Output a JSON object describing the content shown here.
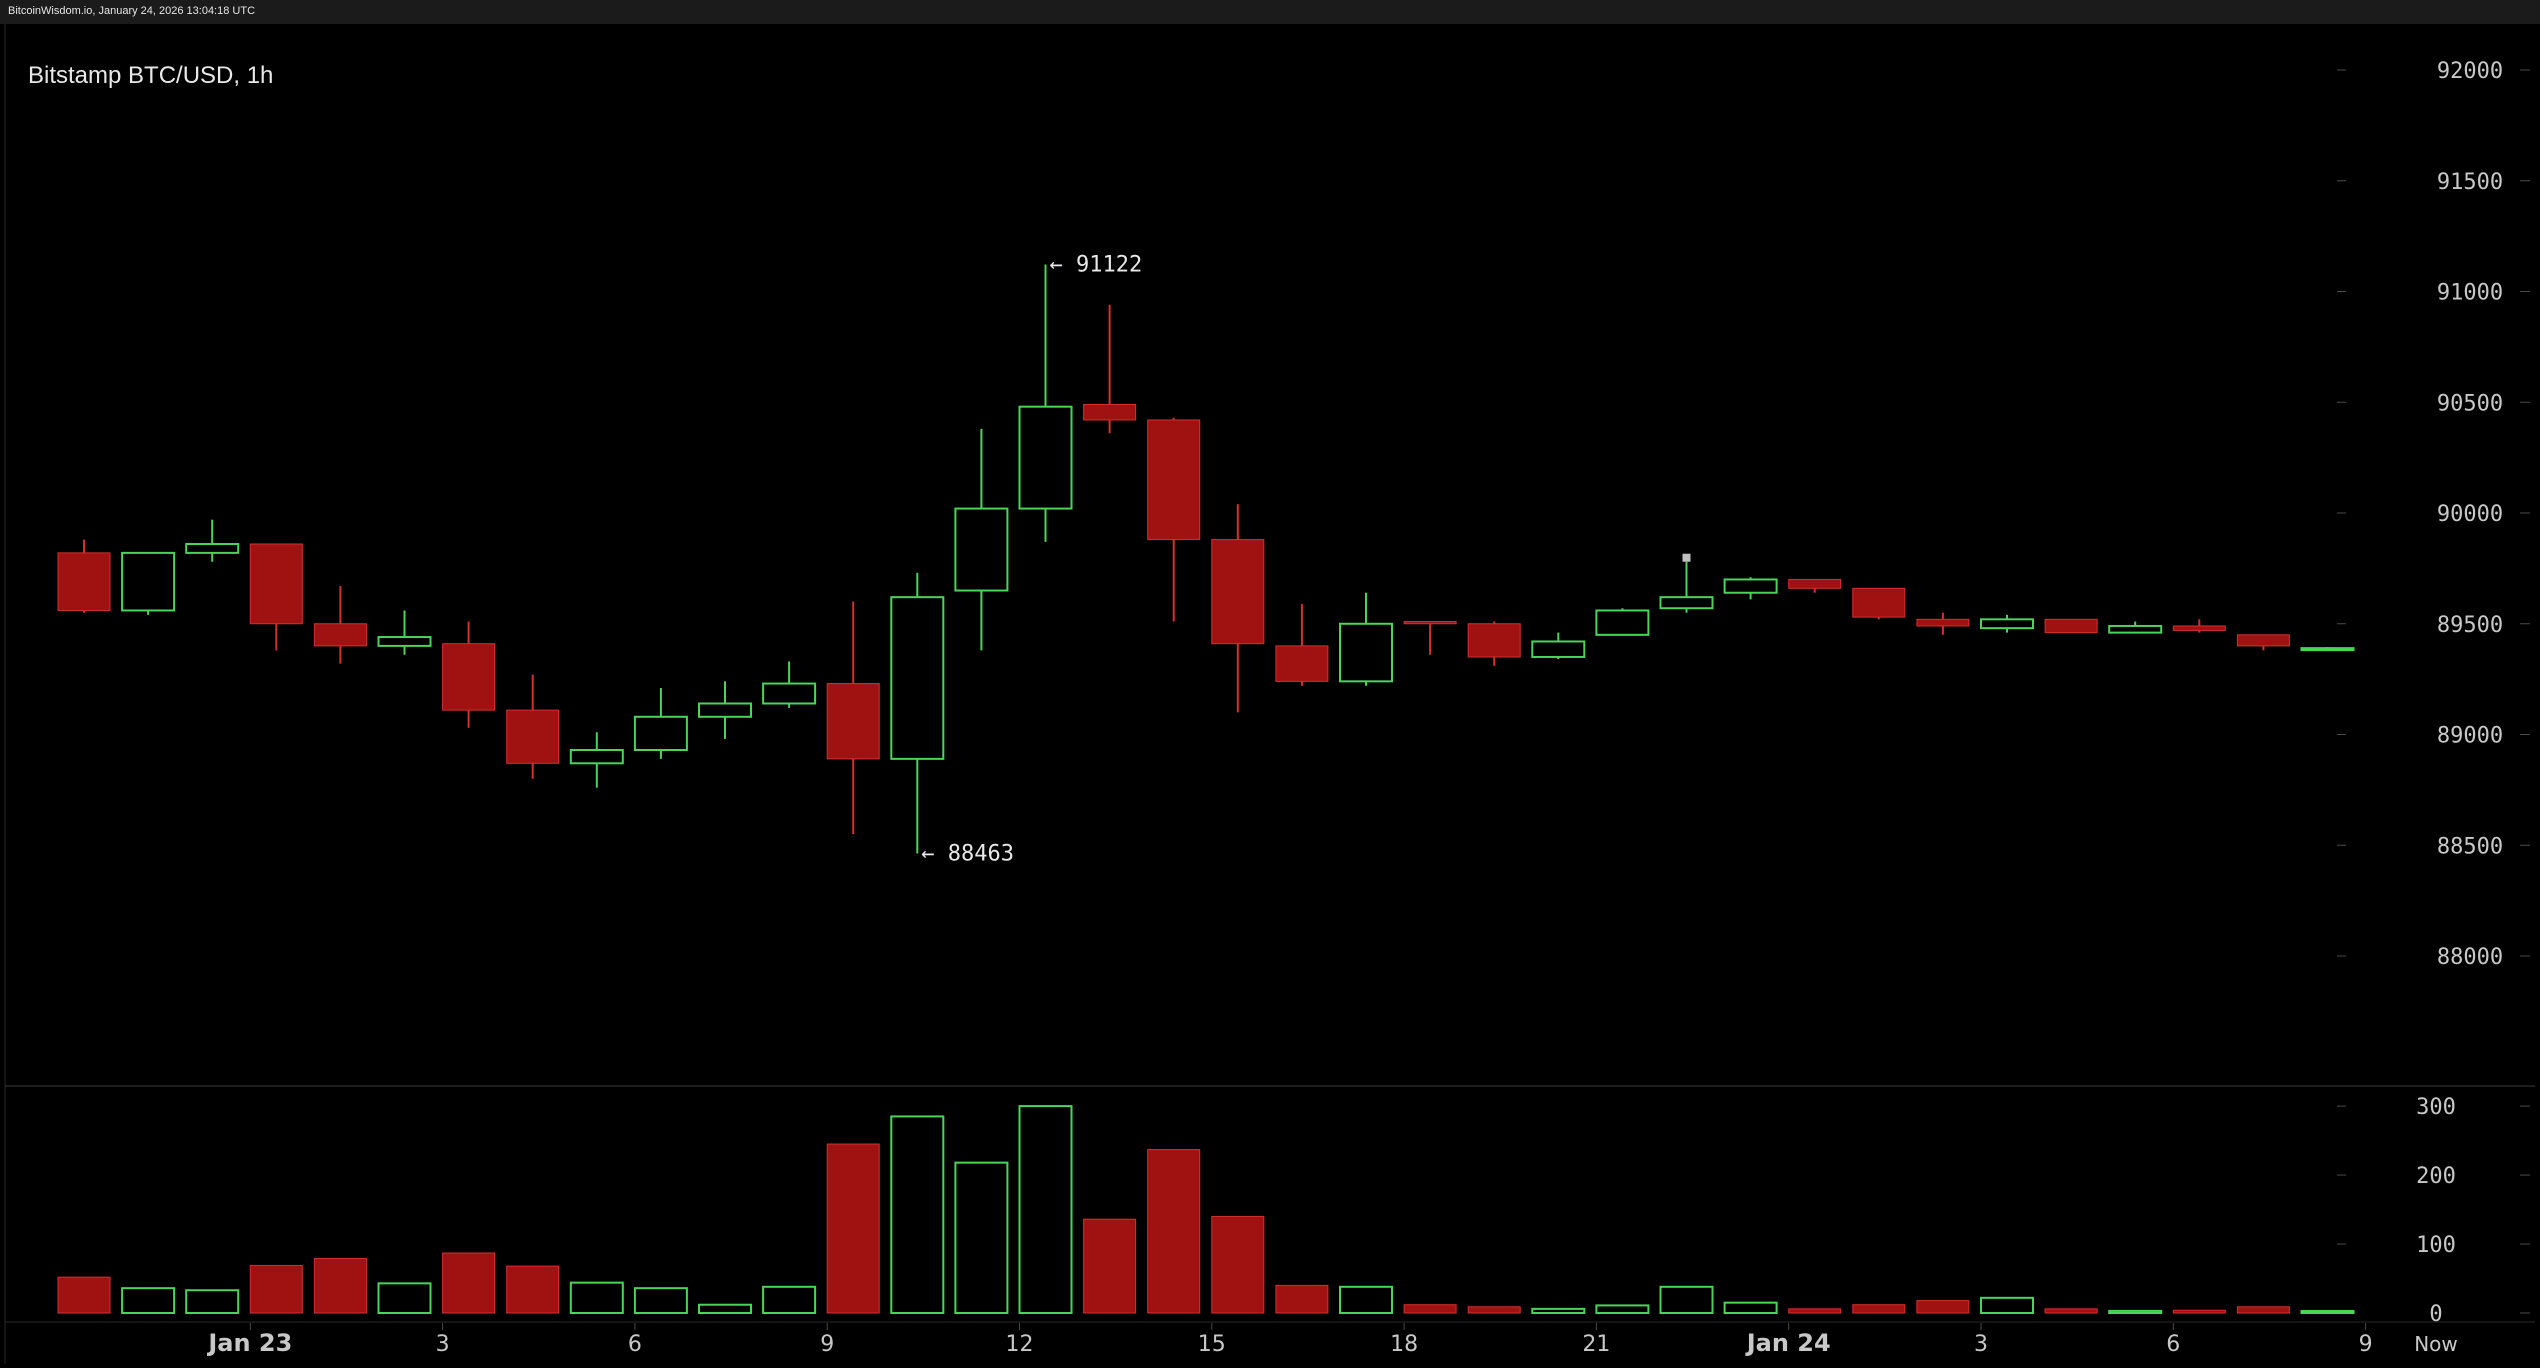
{
  "header": {
    "caption": "BitcoinWisdom.io, January 24, 2026 13:04:18 UTC"
  },
  "chart_data": {
    "type": "candlestick",
    "title": "Bitstamp BTC/USD, 1h",
    "colors": {
      "up": "#4ad45a",
      "down": "#a01212",
      "down_edge": "#d43030",
      "grid": "#303030",
      "axis_text": "#c8c8c8",
      "background": "#000000",
      "current_marker": "#c0c0c0"
    },
    "price_axis": {
      "ticks": [
        88000,
        88500,
        89000,
        89500,
        90000,
        90500,
        91000,
        91500,
        92000
      ]
    },
    "volume_axis": {
      "ticks": [
        0,
        100,
        200,
        300
      ]
    },
    "x_axis": {
      "labels": [
        {
          "label": "Jan 23",
          "index": 3,
          "bold": true
        },
        {
          "label": "3",
          "index": 6,
          "bold": false
        },
        {
          "label": "6",
          "index": 9,
          "bold": false
        },
        {
          "label": "9",
          "index": 12,
          "bold": false
        },
        {
          "label": "12",
          "index": 15,
          "bold": false
        },
        {
          "label": "15",
          "index": 18,
          "bold": false
        },
        {
          "label": "18",
          "index": 21,
          "bold": false
        },
        {
          "label": "21",
          "index": 24,
          "bold": false
        },
        {
          "label": "Jan 24",
          "index": 27,
          "bold": true
        },
        {
          "label": "3",
          "index": 30,
          "bold": false
        },
        {
          "label": "6",
          "index": 33,
          "bold": false
        },
        {
          "label": "9",
          "index": 36,
          "bold": false
        }
      ],
      "now_label": "Now"
    },
    "annotations": [
      {
        "text": "← 91122",
        "candle_index": 15,
        "price": 91122
      },
      {
        "text": "← 88463",
        "candle_index": 13,
        "price": 88463
      }
    ],
    "candles": [
      {
        "o": 89820,
        "h": 89880,
        "l": 89550,
        "c": 89560,
        "v": 52
      },
      {
        "o": 89560,
        "h": 89820,
        "l": 89540,
        "c": 89820,
        "v": 36
      },
      {
        "o": 89820,
        "h": 89970,
        "l": 89780,
        "c": 89860,
        "v": 33
      },
      {
        "o": 89860,
        "h": 89860,
        "l": 89380,
        "c": 89500,
        "v": 69
      },
      {
        "o": 89500,
        "h": 89670,
        "l": 89320,
        "c": 89400,
        "v": 79
      },
      {
        "o": 89400,
        "h": 89560,
        "l": 89360,
        "c": 89440,
        "v": 43
      },
      {
        "o": 89410,
        "h": 89510,
        "l": 89030,
        "c": 89110,
        "v": 87
      },
      {
        "o": 89110,
        "h": 89270,
        "l": 88800,
        "c": 88870,
        "v": 68
      },
      {
        "o": 88870,
        "h": 89010,
        "l": 88760,
        "c": 88930,
        "v": 44
      },
      {
        "o": 88930,
        "h": 89210,
        "l": 88890,
        "c": 89080,
        "v": 36
      },
      {
        "o": 89080,
        "h": 89240,
        "l": 88980,
        "c": 89140,
        "v": 12
      },
      {
        "o": 89140,
        "h": 89330,
        "l": 89120,
        "c": 89230,
        "v": 38
      },
      {
        "o": 89230,
        "h": 89600,
        "l": 88550,
        "c": 88890,
        "v": 245
      },
      {
        "o": 88890,
        "h": 89730,
        "l": 88463,
        "c": 89620,
        "v": 285
      },
      {
        "o": 89650,
        "h": 90380,
        "l": 89380,
        "c": 90020,
        "v": 218
      },
      {
        "o": 90020,
        "h": 91122,
        "l": 89870,
        "c": 90480,
        "v": 300
      },
      {
        "o": 90490,
        "h": 90940,
        "l": 90360,
        "c": 90420,
        "v": 136
      },
      {
        "o": 90420,
        "h": 90430,
        "l": 89510,
        "c": 89880,
        "v": 237
      },
      {
        "o": 89880,
        "h": 90040,
        "l": 89100,
        "c": 89410,
        "v": 140
      },
      {
        "o": 89400,
        "h": 89590,
        "l": 89220,
        "c": 89240,
        "v": 40
      },
      {
        "o": 89240,
        "h": 89640,
        "l": 89220,
        "c": 89500,
        "v": 38
      },
      {
        "o": 89510,
        "h": 89510,
        "l": 89360,
        "c": 89500,
        "v": 12
      },
      {
        "o": 89500,
        "h": 89510,
        "l": 89310,
        "c": 89350,
        "v": 9
      },
      {
        "o": 89350,
        "h": 89460,
        "l": 89340,
        "c": 89420,
        "v": 6
      },
      {
        "o": 89450,
        "h": 89570,
        "l": 89450,
        "c": 89560,
        "v": 11
      },
      {
        "o": 89570,
        "h": 89780,
        "l": 89550,
        "c": 89620,
        "v": 38
      },
      {
        "o": 89640,
        "h": 89710,
        "l": 89610,
        "c": 89700,
        "v": 15
      },
      {
        "o": 89700,
        "h": 89700,
        "l": 89640,
        "c": 89660,
        "v": 6
      },
      {
        "o": 89660,
        "h": 89660,
        "l": 89520,
        "c": 89530,
        "v": 12
      },
      {
        "o": 89520,
        "h": 89550,
        "l": 89450,
        "c": 89490,
        "v": 18
      },
      {
        "o": 89480,
        "h": 89540,
        "l": 89460,
        "c": 89520,
        "v": 22
      },
      {
        "o": 89520,
        "h": 89520,
        "l": 89460,
        "c": 89460,
        "v": 6
      },
      {
        "o": 89460,
        "h": 89510,
        "l": 89460,
        "c": 89490,
        "v": 3
      },
      {
        "o": 89490,
        "h": 89520,
        "l": 89460,
        "c": 89470,
        "v": 4
      },
      {
        "o": 89450,
        "h": 89450,
        "l": 89380,
        "c": 89400,
        "v": 9
      },
      {
        "o": 89390,
        "h": 89395,
        "l": 89385,
        "c": 89390,
        "v": 2
      }
    ]
  }
}
